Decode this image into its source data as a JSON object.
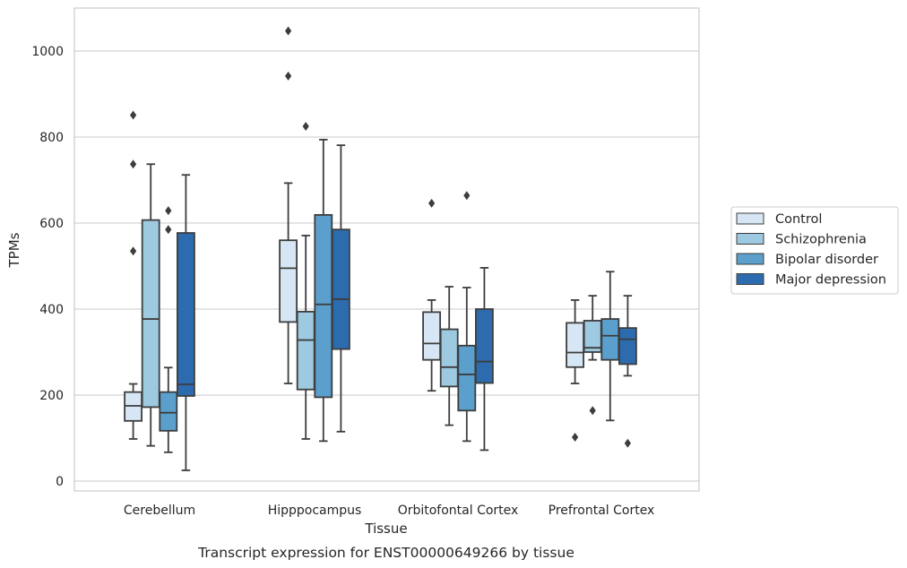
{
  "chart_data": {
    "type": "box",
    "title": "Transcript expression for ENST00000649266 by tissue",
    "xlabel": "Tissue",
    "ylabel": "TPMs",
    "ylim": [
      -25,
      1100
    ],
    "yticks": [
      0,
      200,
      400,
      600,
      800,
      1000
    ],
    "grid": true,
    "legend_position": "right",
    "categories": [
      "Cerebellum",
      "Hipppocampus",
      "Orbitofontal Cortex",
      "Prefrontal Cortex"
    ],
    "series": [
      {
        "name": "Control",
        "color": "#d6e6f4",
        "boxes": [
          {
            "min": 98,
            "q1": 140,
            "median": 175,
            "q3": 207,
            "max": 226,
            "outliers": [
              535,
              737,
              851
            ]
          },
          {
            "min": 227,
            "q1": 370,
            "median": 495,
            "q3": 560,
            "max": 693,
            "outliers": [
              942,
              1047
            ]
          },
          {
            "min": 210,
            "q1": 282,
            "median": 320,
            "q3": 393,
            "max": 421,
            "outliers": [
              646
            ]
          },
          {
            "min": 227,
            "q1": 265,
            "median": 299,
            "q3": 368,
            "max": 421,
            "outliers": [
              102
            ]
          }
        ]
      },
      {
        "name": "Schizophrenia",
        "color": "#9ecae1",
        "boxes": [
          {
            "min": 82,
            "q1": 172,
            "median": 377,
            "q3": 607,
            "max": 737,
            "outliers": []
          },
          {
            "min": 98,
            "q1": 213,
            "median": 328,
            "q3": 394,
            "max": 571,
            "outliers": [
              825
            ]
          },
          {
            "min": 130,
            "q1": 220,
            "median": 265,
            "q3": 353,
            "max": 452,
            "outliers": []
          },
          {
            "min": 282,
            "q1": 300,
            "median": 310,
            "q3": 373,
            "max": 431,
            "outliers": [
              164
            ]
          }
        ]
      },
      {
        "name": "Bipolar disorder",
        "color": "#5b9fcd",
        "boxes": [
          {
            "min": 67,
            "q1": 117,
            "median": 159,
            "q3": 207,
            "max": 264,
            "outliers": [
              585,
              629
            ]
          },
          {
            "min": 93,
            "q1": 195,
            "median": 411,
            "q3": 619,
            "max": 794,
            "outliers": []
          },
          {
            "min": 93,
            "q1": 164,
            "median": 248,
            "q3": 315,
            "max": 450,
            "outliers": [
              664
            ]
          },
          {
            "min": 141,
            "q1": 282,
            "median": 338,
            "q3": 377,
            "max": 487,
            "outliers": []
          }
        ]
      },
      {
        "name": "Major depression",
        "color": "#2c6cae",
        "boxes": [
          {
            "min": 25,
            "q1": 198,
            "median": 225,
            "q3": 577,
            "max": 712,
            "outliers": []
          },
          {
            "min": 115,
            "q1": 307,
            "median": 423,
            "q3": 585,
            "max": 781,
            "outliers": []
          },
          {
            "min": 72,
            "q1": 228,
            "median": 278,
            "q3": 400,
            "max": 496,
            "outliers": []
          },
          {
            "min": 245,
            "q1": 272,
            "median": 330,
            "q3": 356,
            "max": 431,
            "outliers": [
              88
            ]
          }
        ]
      }
    ]
  }
}
